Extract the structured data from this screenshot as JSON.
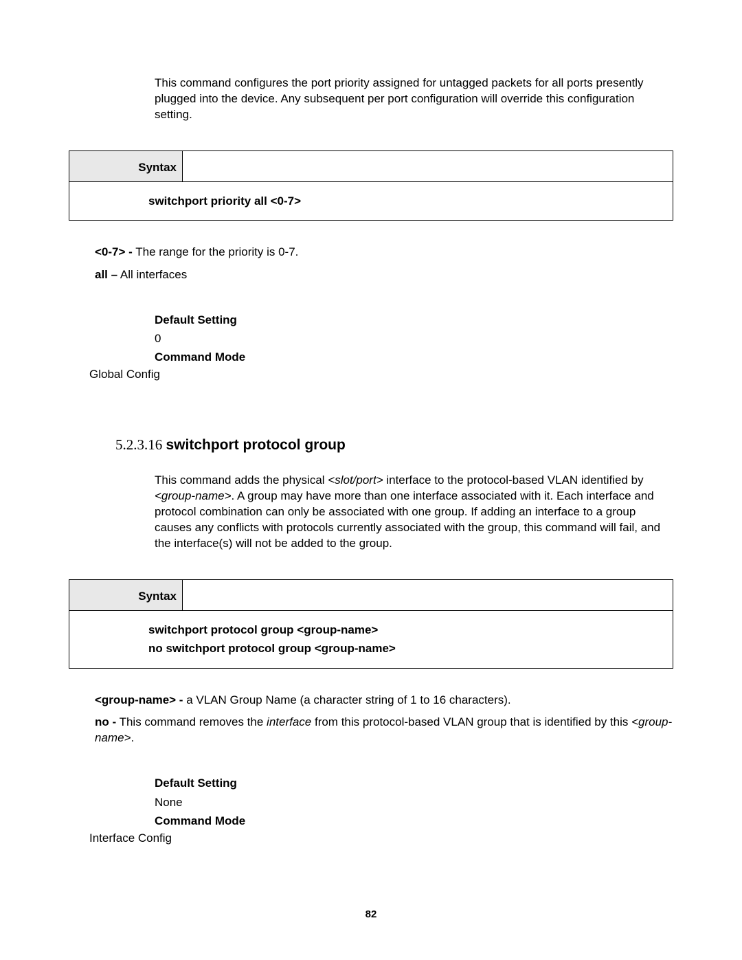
{
  "section1": {
    "intro": "This command configures the port priority assigned for untagged packets for all ports presently plugged into the device. Any subsequent per port configuration will override this configuration setting.",
    "syntax_label": "Syntax",
    "syntax_body": "switchport priority all <0-7>",
    "params": {
      "p1_key": "<0-7> -",
      "p1_desc": " The range for the priority is 0-7.",
      "p2_key": "all –",
      "p2_desc": " All interfaces"
    },
    "default_label": "Default Setting",
    "default_value": "0",
    "mode_label": "Command Mode",
    "mode_value": "Global Config"
  },
  "section2": {
    "heading_num": "5.2.3.16 ",
    "heading_title": "switchport protocol group",
    "intro_1": "This command adds the physical ",
    "intro_slotport": "<slot/port>",
    "intro_2": " interface to the protocol-based VLAN identified by ",
    "intro_groupname": "<group-name>",
    "intro_3": ". A group may have more than one interface associated with it. Each interface and protocol combination can only be associated with one group. If adding an interface to a group causes any conflicts with protocols currently associated with the group, this command will fail, and the interface(s) will not be added to the group.",
    "syntax_label": "Syntax",
    "syntax_line1": "switchport protocol group <group-name>",
    "syntax_line2": "no switchport protocol group <group-name>",
    "params": {
      "p1_key": "<group-name> -",
      "p1_desc": " a VLAN Group Name (a character string of 1 to 16 characters).",
      "p2_key": "no -",
      "p2_desc_1": " This command removes the ",
      "p2_desc_it": "interface",
      "p2_desc_2": " from this protocol-based VLAN group that is identified by this ",
      "p2_desc_it2": "<group-name>",
      "p2_desc_3": "."
    },
    "default_label": "Default Setting",
    "default_value": "None",
    "mode_label": "Command Mode",
    "mode_value": "Interface Config"
  },
  "page_number": "82"
}
